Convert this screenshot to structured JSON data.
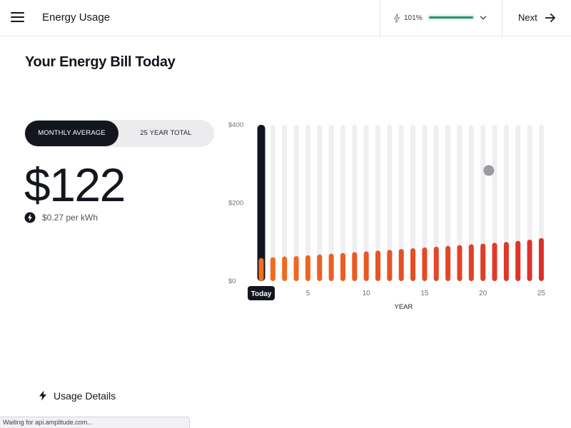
{
  "header": {
    "app_title": "Energy Usage",
    "coverage_percent_label": "101%",
    "coverage_fraction": 1.0,
    "coverage_color": "#1a9a6a",
    "next_label": "Next",
    "icons": [
      "menu-icon",
      "bolt-icon",
      "chevron-down-icon",
      "arrow-right-icon"
    ]
  },
  "main": {
    "page_title": "Your Energy Bill Today",
    "toggle": {
      "options": [
        "MONTHLY AVERAGE",
        "25 YEAR TOTAL"
      ],
      "selected": "MONTHLY AVERAGE"
    },
    "bill_value": "$122",
    "rate_text": "$0.27 per kWh",
    "usage_details_label": "Usage Details"
  },
  "chart_data": {
    "type": "bar",
    "x": [
      1,
      2,
      3,
      4,
      5,
      6,
      7,
      8,
      9,
      10,
      11,
      12,
      13,
      14,
      15,
      16,
      17,
      18,
      19,
      20,
      21,
      22,
      23,
      24,
      25
    ],
    "values": [
      59,
      61,
      63,
      64,
      66,
      68,
      70,
      72,
      74,
      76,
      78,
      80,
      82,
      84,
      86,
      88,
      90,
      92,
      94,
      96,
      98,
      100,
      103,
      106,
      110
    ],
    "xlabel": "YEAR",
    "ylabel": "",
    "ylim": [
      0,
      400
    ],
    "y_tick_labels": [
      "$0",
      "$200",
      "$400"
    ],
    "y_tick_values": [
      0,
      200,
      400
    ],
    "x_tick_labels": [
      "5",
      "10",
      "15",
      "20",
      "25"
    ],
    "x_tick_values": [
      5,
      10,
      15,
      20,
      25
    ],
    "highlight_label": "Today",
    "highlight_x": 1,
    "grid": false,
    "colors": {
      "start": "#f07020",
      "end": "#dc2f2a",
      "track": "#efeff1",
      "highlight": "#14161f",
      "marker": "#9b9ba0"
    },
    "marker": {
      "x": 20.5,
      "y": 283
    }
  },
  "status_bar": {
    "text": "Waiting for api.amplitude.com..."
  }
}
